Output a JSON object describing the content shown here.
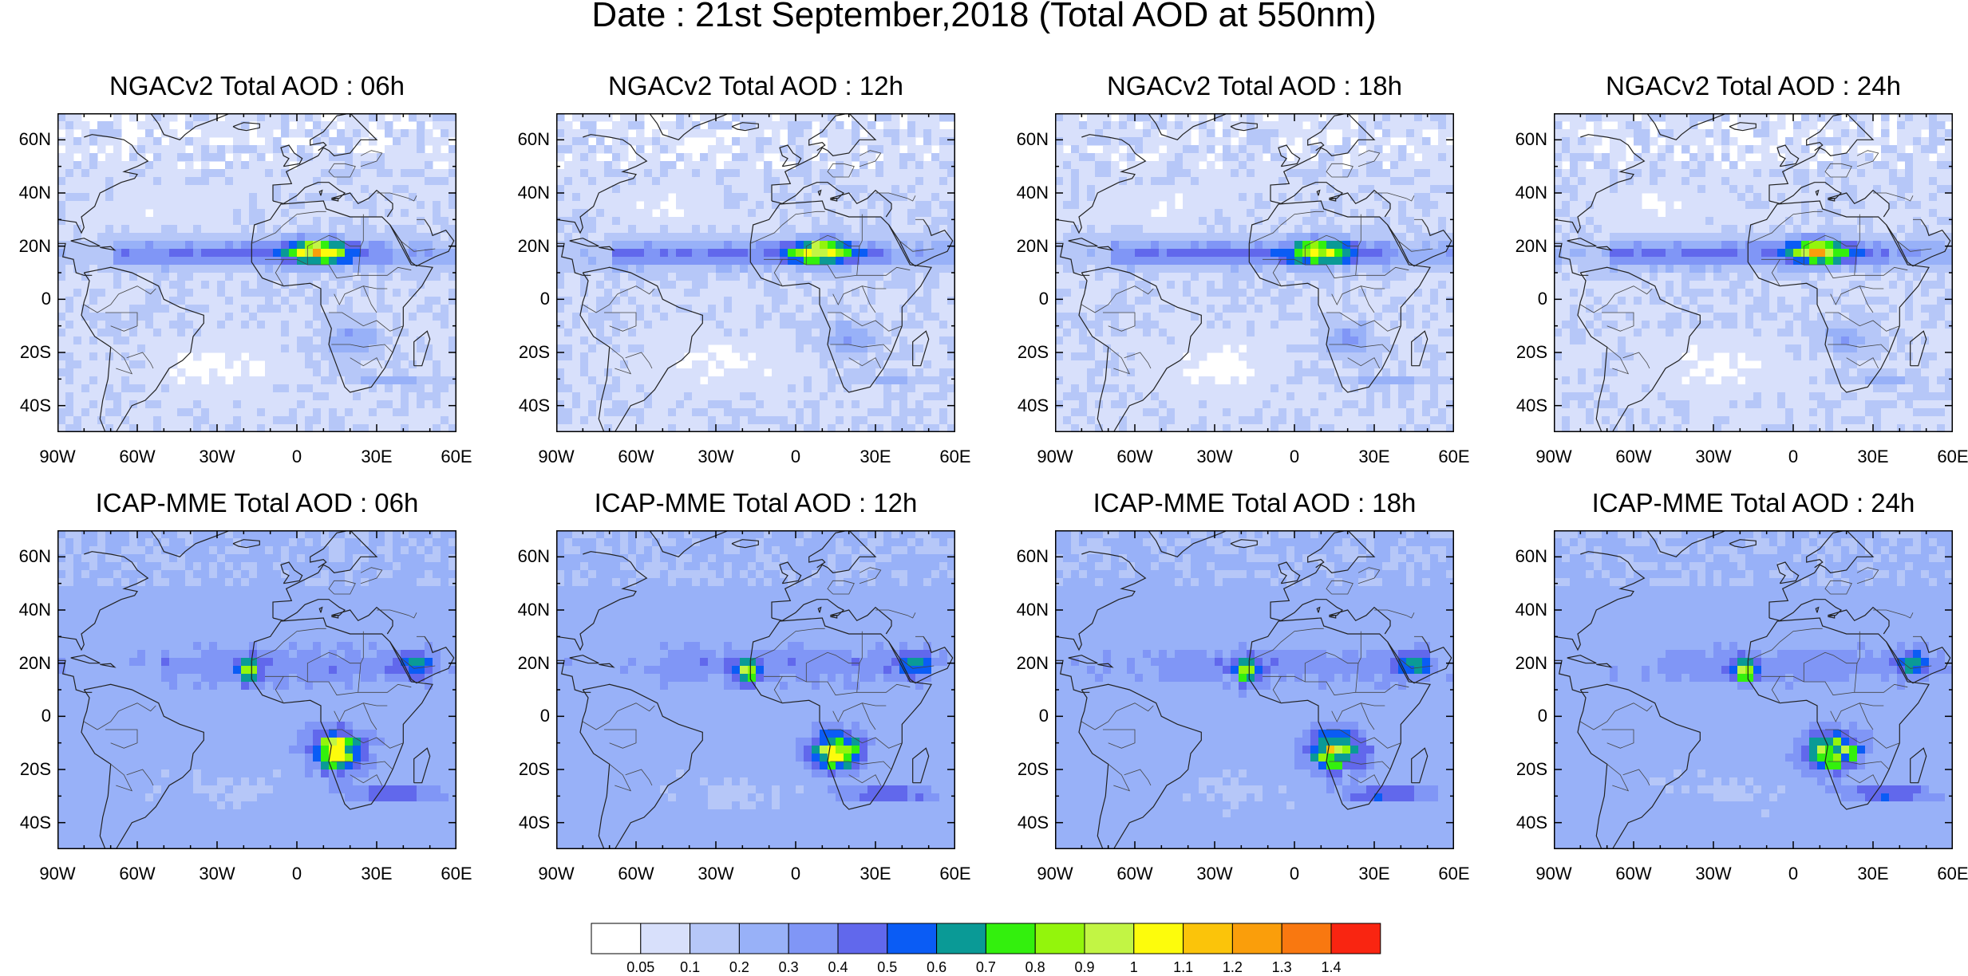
{
  "title": "Date : 21st September,2018 (Total AOD at 550nm)",
  "panels": [
    {
      "model": "NGACv2",
      "title": "NGACv2 Total AOD : 06h"
    },
    {
      "model": "NGACv2",
      "title": "NGACv2 Total AOD : 12h"
    },
    {
      "model": "NGACv2",
      "title": "NGACv2 Total AOD : 18h"
    },
    {
      "model": "NGACv2",
      "title": "NGACv2 Total AOD : 24h"
    },
    {
      "model": "ICAP-MME",
      "title": "ICAP-MME Total AOD : 06h"
    },
    {
      "model": "ICAP-MME",
      "title": "ICAP-MME Total AOD : 12h"
    },
    {
      "model": "ICAP-MME",
      "title": "ICAP-MME Total AOD : 18h"
    },
    {
      "model": "ICAP-MME",
      "title": "ICAP-MME Total AOD : 24h"
    }
  ],
  "lat_ticks": [
    "60N",
    "40N",
    "20N",
    "0",
    "20S",
    "40S"
  ],
  "lon_ticks": [
    "90W",
    "60W",
    "30W",
    "0",
    "30E",
    "60E"
  ],
  "colorbar": {
    "labels": [
      "0.05",
      "0.1",
      "0.2",
      "0.3",
      "0.4",
      "0.5",
      "0.6",
      "0.7",
      "0.8",
      "0.9",
      "1",
      "1.1",
      "1.2",
      "1.3",
      "1.4"
    ],
    "colors": [
      "#ffffff",
      "#d8e0fb",
      "#b6c7f8",
      "#98b1f8",
      "#8096f6",
      "#6168ec",
      "#0a5cf5",
      "#0a9a96",
      "#33f00d",
      "#93f50c",
      "#c2f544",
      "#fdfc0c",
      "#fbc40a",
      "#fa9e0b",
      "#f97810",
      "#f92511"
    ]
  }
}
